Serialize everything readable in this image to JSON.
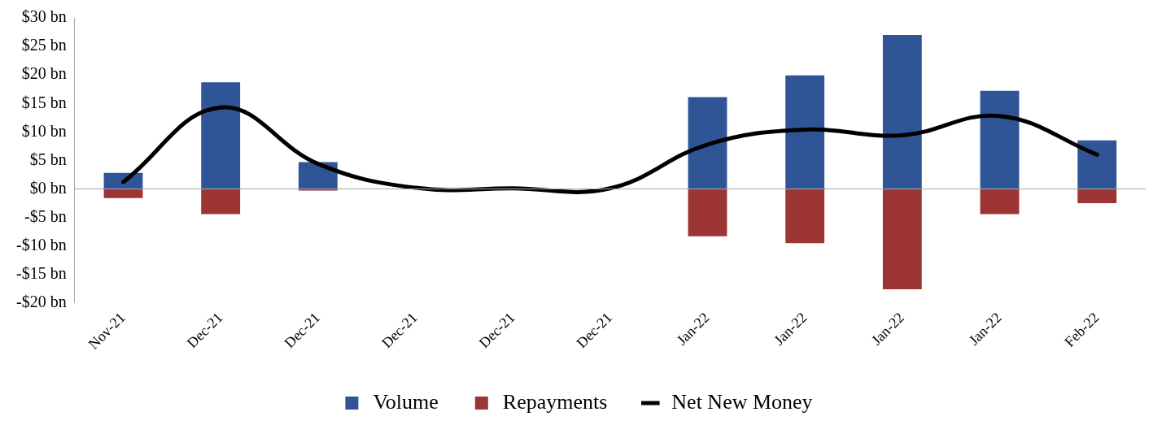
{
  "chart_data": {
    "type": "bar",
    "stacked": true,
    "categories": [
      "Nov-21",
      "Dec-21",
      "Dec-21",
      "Dec-21",
      "Dec-21",
      "Dec-21",
      "Jan-22",
      "Jan-22",
      "Jan-22",
      "Jan-22",
      "Feb-22"
    ],
    "series": [
      {
        "name": "Volume",
        "color": "#2f5597",
        "values": [
          2.8,
          18.7,
          4.7,
          0,
          0,
          0,
          16.1,
          19.9,
          27.0,
          17.2,
          8.5
        ]
      },
      {
        "name": "Repayments",
        "color": "#9e3535",
        "values": [
          -1.6,
          -4.4,
          -0.3,
          0,
          0,
          0,
          -8.3,
          -9.5,
          -17.6,
          -4.4,
          -2.5
        ]
      },
      {
        "name": "Net New Money",
        "type": "line",
        "color": "#000000",
        "values": [
          1.2,
          14.3,
          4.4,
          0.2,
          0.1,
          0.1,
          7.8,
          10.4,
          9.4,
          12.8,
          6.0
        ]
      }
    ],
    "ylim": [
      -20,
      30
    ],
    "yticks": [
      {
        "value": -20,
        "label": "-$20 bn"
      },
      {
        "value": -15,
        "label": "-$15 bn"
      },
      {
        "value": -10,
        "label": "-$10 bn"
      },
      {
        "value": -5,
        "label": "-$5 bn"
      },
      {
        "value": 0,
        "label": "$0 bn"
      },
      {
        "value": 5,
        "label": "$5 bn"
      },
      {
        "value": 10,
        "label": "$10 bn"
      },
      {
        "value": 15,
        "label": "$15 bn"
      },
      {
        "value": 20,
        "label": "$20 bn"
      },
      {
        "value": 25,
        "label": "$25 bn"
      },
      {
        "value": 30,
        "label": "$30 bn"
      }
    ],
    "ref_lines": [
      {
        "axis": "y",
        "value": 0,
        "color": "#a6a6a6"
      }
    ],
    "legend": "bottom",
    "marker": "none",
    "grid": false
  }
}
